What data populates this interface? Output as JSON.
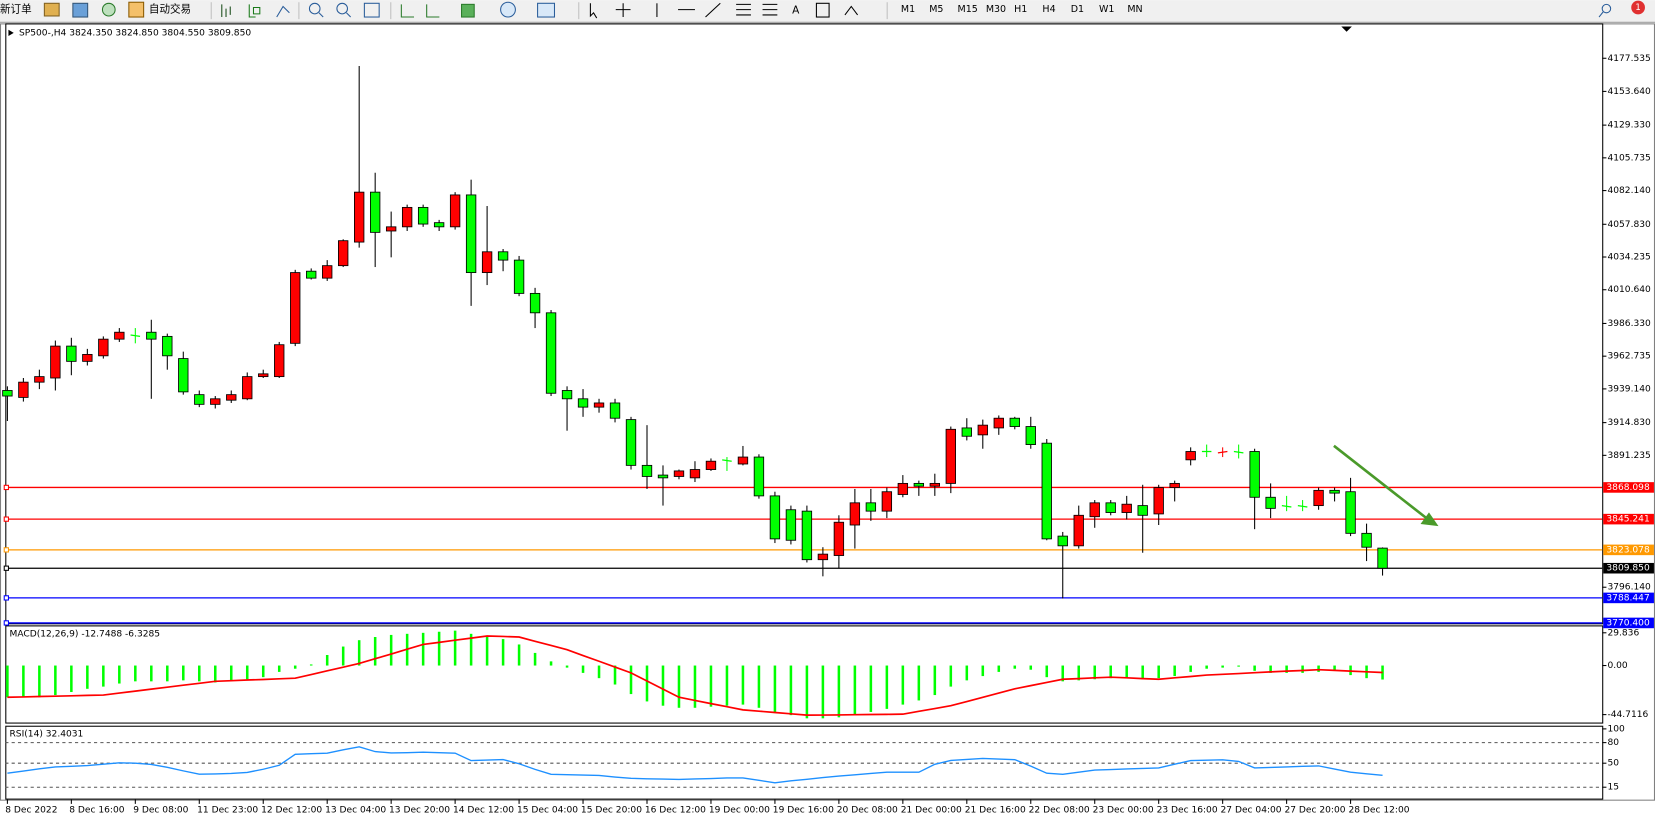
{
  "toolbar": {
    "new_order": "新订单",
    "auto_trading": "自动交易",
    "text_tool": "A",
    "timeframes": [
      "M1",
      "M5",
      "M15",
      "M30",
      "H1",
      "H4",
      "D1",
      "W1",
      "MN"
    ],
    "notifications": 1
  },
  "chart_data": [
    {
      "type": "candlestick",
      "title": "SP500-,H4  3824.350 3824.850 3804.550 3809.850",
      "up_color": "#ff0000",
      "down_color": "#00ff00",
      "ylim": [
        3769.4,
        4202.7
      ],
      "yticks": [
        4177.535,
        {
          "value": 4153.64,
          "label": "4153.640"
        },
        {
          "value": 4129.33,
          "label": "4129.330"
        },
        4105.735,
        {
          "value": 4082.14,
          "label": "4082.140"
        },
        {
          "value": 4057.83,
          "label": "4057.830"
        },
        4034.235,
        {
          "value": 4010.64,
          "label": "4010.640"
        },
        {
          "value": 3986.33,
          "label": "3986.330"
        },
        3962.735,
        {
          "value": 3939.14,
          "label": "3939.140"
        },
        {
          "value": 3914.83,
          "label": "3914.830"
        },
        3891.235,
        {
          "value": 3796.14,
          "label": "3796.140"
        }
      ],
      "levels": [
        {
          "value": 3868.098,
          "color": "#ff0000"
        },
        {
          "value": 3845.241,
          "color": "#ff0000"
        },
        {
          "value": 3823.078,
          "color": "#ff9900"
        },
        {
          "value": {
            "value": 3809.85,
            "label": "3809.850"
          },
          "color": "#000000"
        },
        {
          "value": 3788.447,
          "color": "#0000ff"
        },
        {
          "value": {
            "value": 3770.4,
            "label": "3770.400"
          },
          "color": "#0000ff"
        }
      ],
      "categories": [
        "8 Dec 2022",
        null,
        null,
        null,
        "8 Dec 16:00",
        null,
        null,
        null,
        "9 Dec 08:00",
        null,
        null,
        null,
        "11 Dec 23:00",
        null,
        null,
        null,
        "12 Dec 12:00",
        null,
        null,
        null,
        "13 Dec 04:00",
        null,
        null,
        null,
        "13 Dec 20:00",
        null,
        null,
        null,
        "14 Dec 12:00",
        null,
        null,
        null,
        "15 Dec 04:00",
        null,
        null,
        null,
        "15 Dec 20:00",
        null,
        null,
        null,
        "16 Dec 12:00",
        null,
        null,
        null,
        "19 Dec 00:00",
        null,
        null,
        null,
        "19 Dec 16:00",
        null,
        null,
        null,
        "20 Dec 08:00",
        null,
        null,
        null,
        "21 Dec 00:00",
        null,
        null,
        null,
        "21 Dec 16:00",
        null,
        null,
        null,
        "22 Dec 08:00",
        null,
        null,
        null,
        "23 Dec 00:00",
        null,
        null,
        null,
        "23 Dec 16:00",
        null,
        null,
        null,
        "27 Dec 04:00",
        null,
        null,
        null,
        "27 Dec 20:00",
        null,
        null,
        null,
        "28 Dec 12:00",
        null,
        null
      ],
      "candles": [
        [
          3938,
          3941,
          3916,
          3934
        ],
        [
          3933,
          3947,
          3930,
          3944
        ],
        [
          3944,
          3953,
          3939,
          3948
        ],
        [
          3947,
          3974,
          3938,
          3970
        ],
        [
          3970,
          3976,
          3949,
          3959
        ],
        [
          3959,
          3968,
          3956,
          3964
        ],
        [
          3963,
          3977,
          3961,
          3975
        ],
        [
          3975,
          3983,
          3973,
          3980
        ],
        [
          3978,
          3983,
          3972,
          3977
        ],
        [
          3980,
          3989,
          3932,
          3975
        ],
        [
          3977,
          3979,
          3953,
          3963
        ],
        [
          3961,
          3966,
          3935,
          3937
        ],
        [
          3935,
          3938,
          3926,
          3928
        ],
        [
          3928,
          3934,
          3925,
          3932
        ],
        [
          3931,
          3938,
          3929,
          3935
        ],
        [
          3932,
          3951,
          3931,
          3948
        ],
        [
          3948,
          3953,
          3947,
          3950
        ],
        [
          3948,
          3973,
          3947,
          3971
        ],
        [
          3972,
          4025,
          3970,
          4023
        ],
        [
          4024,
          4026,
          4018,
          4019
        ],
        [
          4019,
          4032,
          4017,
          4028
        ],
        [
          4028,
          4047,
          4027,
          4046
        ],
        [
          4045,
          4172,
          4041,
          4081
        ],
        [
          4081,
          4095,
          4027,
          4052
        ],
        [
          4053,
          4067,
          4034,
          4056
        ],
        [
          4056,
          4072,
          4053,
          4070
        ],
        [
          4070,
          4072,
          4056,
          4058
        ],
        [
          4059,
          4061,
          4053,
          4056
        ],
        [
          4056,
          4081,
          4054,
          4079
        ],
        [
          4079,
          4090,
          3999,
          4023
        ],
        [
          4023,
          4071,
          4014,
          4038
        ],
        [
          4038,
          4040,
          4024,
          4032
        ],
        [
          4032,
          4035,
          4006,
          4008
        ],
        [
          4008,
          4012,
          3983,
          3994
        ],
        [
          3994,
          3996,
          3934,
          3936
        ],
        [
          3938,
          3941,
          3909,
          3932
        ],
        [
          3932,
          3939,
          3919,
          3926
        ],
        [
          3926,
          3932,
          3922,
          3929
        ],
        [
          3929,
          3932,
          3915,
          3918
        ],
        [
          3917,
          3919,
          3881,
          3884
        ],
        [
          3884,
          3913,
          3867,
          3876
        ],
        [
          3877,
          3884,
          3855,
          3875
        ],
        [
          3876,
          3881,
          3874,
          3880
        ],
        [
          3875,
          3887,
          3872,
          3881
        ],
        [
          3881,
          3889,
          3880,
          3887
        ],
        [
          3888,
          3890,
          3880,
          3887
        ],
        [
          3885,
          3898,
          3884,
          3890
        ],
        [
          3890,
          3892,
          3860,
          3862
        ],
        [
          3862,
          3865,
          3828,
          3831
        ],
        [
          3852,
          3855,
          3827,
          3830
        ],
        [
          3851,
          3855,
          3814,
          3816
        ],
        [
          3816,
          3825,
          3804,
          3820
        ],
        [
          3819,
          3848,
          3810,
          3843
        ],
        [
          3841,
          3867,
          3824,
          3857
        ],
        [
          3857,
          3867,
          3844,
          3851
        ],
        [
          3851,
          3868,
          3846,
          3865
        ],
        [
          3863,
          3877,
          3861,
          3871
        ],
        [
          3871,
          3873,
          3862,
          3869
        ],
        [
          3869,
          3878,
          3862,
          3871
        ],
        [
          3871,
          3912,
          3864,
          3910
        ],
        [
          3911,
          3918,
          3902,
          3905
        ],
        [
          3906,
          3917,
          3896,
          3913
        ],
        [
          3911,
          3920,
          3906,
          3918
        ],
        [
          3918,
          3919,
          3910,
          3912
        ],
        [
          3912,
          3919,
          3896,
          3899
        ],
        [
          3900,
          3903,
          3830,
          3831
        ],
        [
          3833,
          3836,
          3788,
          3826
        ],
        [
          3826,
          3855,
          3824,
          3848
        ],
        [
          3847,
          3859,
          3839,
          3857
        ],
        [
          3857,
          3859,
          3848,
          3850
        ],
        [
          3850,
          3862,
          3845,
          3856
        ],
        [
          3855,
          3870,
          3821,
          3848
        ],
        [
          3849,
          3870,
          3841,
          3868
        ],
        [
          3868,
          3873,
          3858,
          3871
        ],
        [
          3888,
          3897,
          3884,
          3894
        ],
        [
          3894,
          3899,
          3890,
          3894
        ],
        [
          3893,
          3897,
          3890,
          3894
        ],
        [
          3894,
          3899,
          3889,
          3893
        ],
        [
          3894,
          3896,
          3838,
          3861
        ],
        [
          3861,
          3871,
          3846,
          3853
        ],
        [
          3855,
          3862,
          3851,
          3854
        ],
        [
          3855,
          3859,
          3851,
          3854
        ],
        [
          3855,
          3868,
          3852,
          3866
        ],
        [
          3866,
          3868,
          3858,
          3864
        ],
        [
          3865,
          3875,
          3833,
          3835
        ],
        [
          3835,
          3842,
          3815,
          3825
        ],
        [
          3824.35,
          3824.85,
          3804.55,
          3809.85
        ]
      ]
    },
    {
      "type": "macd",
      "title": "MACD(12,26,9) -12.7488 -6.3285",
      "color": "#00ff00",
      "signal_color": "#ff0000",
      "ylim": [
        -52.9,
        36.6
      ],
      "yticks": [
        29.836,
        {
          "value": 0,
          "label": "0.00"
        },
        -44.7116
      ],
      "values": [
        -28.9,
        -28.9,
        -28.9,
        -26.9,
        -24.1,
        -21.2,
        -19.2,
        -16.4,
        -14.4,
        -14.4,
        -14.4,
        -13.5,
        -14.4,
        -15.4,
        -13.5,
        -12.5,
        -10.6,
        -5.8,
        -2.9,
        1.0,
        9.6,
        17.3,
        23.1,
        26.0,
        27.9,
        28.9,
        29.8,
        30.8,
        31.8,
        28.9,
        26.0,
        24.1,
        19.2,
        11.5,
        3.8,
        -1.9,
        -6.7,
        -11.5,
        -17.3,
        -26.0,
        -32.7,
        -36.6,
        -38.5,
        -38.5,
        -37.5,
        -36.6,
        -35.6,
        -38.5,
        -43.3,
        -45.2,
        -48.1,
        -48.1,
        -47.2,
        -44.3,
        -42.3,
        -39.5,
        -35.6,
        -31.8,
        -26.9,
        -19.2,
        -13.5,
        -9.6,
        -5.8,
        -2.9,
        -3.8,
        -10.6,
        -14.4,
        -13.5,
        -12.5,
        -11.5,
        -11.5,
        -12.5,
        -11.5,
        -9.6,
        -5.8,
        -2.9,
        -1.9,
        -1.0,
        -4.8,
        -6.7,
        -6.7,
        -6.7,
        -5.8,
        -4.8,
        -8.7,
        -11.5,
        -12.7488
      ],
      "signal": [
        -28.9,
        -28.6,
        -28.2,
        -27.9,
        -27.6,
        -27.2,
        -26.9,
        -25.1,
        -23.3,
        -21.5,
        -19.7,
        -17.9,
        -16.2,
        -14.4,
        -13.8,
        -13.2,
        -12.7,
        -12.1,
        -11.5,
        -8.2,
        -4.8,
        -1.5,
        1.9,
        6.2,
        10.5,
        14.9,
        19.2,
        21.1,
        23.1,
        25.0,
        26.9,
        26.5,
        26.0,
        22.1,
        18.3,
        14.4,
        9.1,
        3.9,
        -1.4,
        -6.7,
        -14.1,
        -21.5,
        -28.9,
        -31.8,
        -34.7,
        -37.5,
        -40.4,
        -41.6,
        -42.8,
        -44.0,
        -45.2,
        -45.1,
        -45.0,
        -44.8,
        -44.6,
        -44.5,
        -44.3,
        -41.7,
        -39.2,
        -36.6,
        -32.8,
        -28.9,
        -25.1,
        -21.2,
        -18.3,
        -15.4,
        -12.5,
        -11.9,
        -11.2,
        -10.6,
        -11.2,
        -11.9,
        -12.5,
        -11.2,
        -10.0,
        -8.7,
        -8.0,
        -7.3,
        -6.5,
        -5.8,
        -5.1,
        -4.5,
        -3.8,
        -4.4,
        -5.1,
        -5.7,
        -6.3285
      ]
    },
    {
      "type": "line",
      "title": "RSI(14) 32.4031",
      "color": "#1e90ff",
      "ylim": [
        -3.1,
        103.1
      ],
      "yticks": [
        100,
        80,
        50,
        15
      ],
      "levels": [
        80,
        50,
        15
      ],
      "values": [
        35.4,
        38.6,
        41.8,
        44.6,
        45.4,
        46.5,
        48.5,
        50.6,
        50.0,
        48.2,
        44.0,
        38.8,
        34.0,
        34.4,
        35.0,
        36.6,
        41.2,
        47.0,
        63.0,
        63.8,
        64.6,
        69.5,
        73.8,
        66.9,
        64.9,
        65.3,
        66.0,
        65.4,
        64.6,
        53.8,
        54.6,
        55.3,
        49.2,
        41.0,
        33.8,
        33.2,
        32.8,
        32.2,
        29.8,
        27.9,
        27.3,
        26.8,
        26.4,
        27.0,
        27.6,
        28.5,
        28.5,
        25.0,
        21.5,
        24.3,
        26.6,
        29.1,
        31.3,
        33.1,
        35.1,
        36.9,
        36.9,
        36.9,
        48.4,
        54.0,
        55.5,
        56.9,
        56.1,
        55.2,
        45.8,
        35.4,
        33.8,
        36.9,
        40.0,
        40.8,
        41.6,
        42.3,
        43.1,
        48.5,
        53.8,
        54.4,
        54.9,
        52.6,
        43.1,
        43.9,
        44.6,
        45.5,
        46.1,
        41.5,
        36.9,
        34.6,
        32.4031
      ]
    }
  ]
}
